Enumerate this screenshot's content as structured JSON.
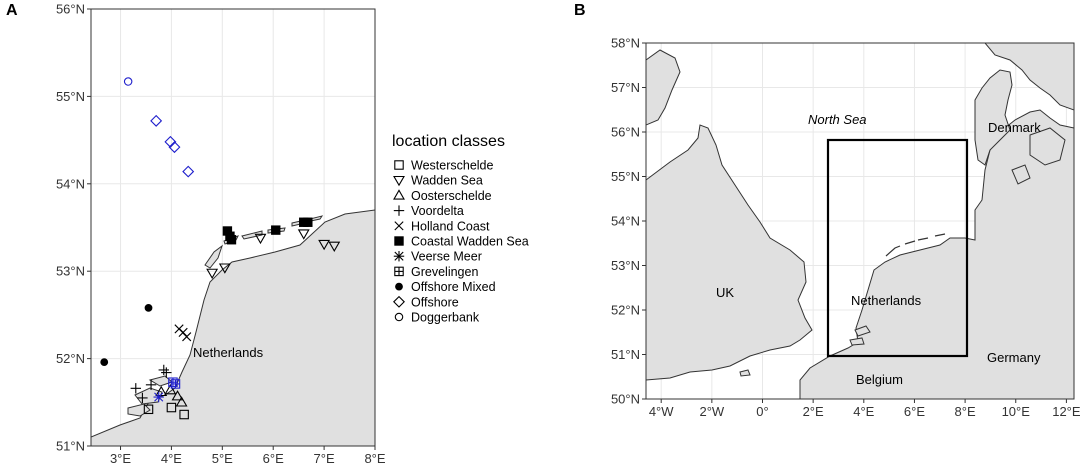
{
  "panel_a": {
    "letter": "A",
    "y_ticks": [
      "51°N",
      "52°N",
      "53°N",
      "54°N",
      "55°N",
      "56°N"
    ],
    "x_ticks": [
      "3°E",
      "4°E",
      "5°E",
      "6°E",
      "7°E",
      "8°E"
    ],
    "country_label": "Netherlands",
    "legend_title": "location classes",
    "legend": [
      {
        "label": "Westerschelde",
        "shape": "open-square"
      },
      {
        "label": "Wadden Sea",
        "shape": "open-triangle-down"
      },
      {
        "label": "Oosterschelde",
        "shape": "open-triangle-up"
      },
      {
        "label": "Voordelta",
        "shape": "plus"
      },
      {
        "label": "Holland Coast",
        "shape": "cross"
      },
      {
        "label": "Coastal Wadden Sea",
        "shape": "filled-square"
      },
      {
        "label": "Veerse Meer",
        "shape": "asterisk"
      },
      {
        "label": "Grevelingen",
        "shape": "square-plus"
      },
      {
        "label": "Offshore Mixed",
        "shape": "filled-circle"
      },
      {
        "label": "Offshore",
        "shape": "open-diamond"
      },
      {
        "label": "Doggerbank",
        "shape": "open-circle"
      }
    ],
    "points": [
      {
        "cls": "Doggerbank",
        "lon": 3.15,
        "lat": 55.17,
        "color": "#1f1fcc"
      },
      {
        "cls": "Offshore",
        "lon": 3.7,
        "lat": 54.72,
        "color": "#1f1fcc"
      },
      {
        "cls": "Offshore",
        "lon": 3.98,
        "lat": 54.48,
        "color": "#1f1fcc"
      },
      {
        "cls": "Offshore",
        "lon": 4.06,
        "lat": 54.42,
        "color": "#1f1fcc"
      },
      {
        "cls": "Offshore",
        "lon": 4.33,
        "lat": 54.14,
        "color": "#1f1fcc"
      },
      {
        "cls": "Offshore Mixed",
        "lon": 3.55,
        "lat": 52.58,
        "color": "#000000"
      },
      {
        "cls": "Offshore Mixed",
        "lon": 2.68,
        "lat": 51.96,
        "color": "#000000"
      },
      {
        "cls": "Coastal Wadden Sea",
        "lon": 5.1,
        "lat": 53.46,
        "color": "#000000"
      },
      {
        "cls": "Coastal Wadden Sea",
        "lon": 5.15,
        "lat": 53.4,
        "color": "#000000"
      },
      {
        "cls": "Coastal Wadden Sea",
        "lon": 5.18,
        "lat": 53.36,
        "color": "#000000"
      },
      {
        "cls": "Coastal Wadden Sea",
        "lon": 6.05,
        "lat": 53.47,
        "color": "#000000"
      },
      {
        "cls": "Coastal Wadden Sea",
        "lon": 6.6,
        "lat": 53.56,
        "color": "#000000"
      },
      {
        "cls": "Coastal Wadden Sea",
        "lon": 6.68,
        "lat": 53.56,
        "color": "#000000"
      },
      {
        "cls": "Wadden Sea",
        "lon": 4.8,
        "lat": 52.98,
        "color": "#000000"
      },
      {
        "cls": "Wadden Sea",
        "lon": 5.05,
        "lat": 53.04,
        "color": "#000000"
      },
      {
        "cls": "Wadden Sea",
        "lon": 5.75,
        "lat": 53.38,
        "color": "#000000"
      },
      {
        "cls": "Wadden Sea",
        "lon": 6.6,
        "lat": 53.43,
        "color": "#000000"
      },
      {
        "cls": "Wadden Sea",
        "lon": 7.0,
        "lat": 53.31,
        "color": "#000000"
      },
      {
        "cls": "Wadden Sea",
        "lon": 7.2,
        "lat": 53.29,
        "color": "#000000"
      },
      {
        "cls": "Holland Coast",
        "lon": 4.15,
        "lat": 52.34,
        "color": "#000000"
      },
      {
        "cls": "Holland Coast",
        "lon": 4.23,
        "lat": 52.3,
        "color": "#000000"
      },
      {
        "cls": "Holland Coast",
        "lon": 4.3,
        "lat": 52.25,
        "color": "#000000"
      },
      {
        "cls": "Voordelta",
        "lon": 3.85,
        "lat": 51.87,
        "color": "#000000"
      },
      {
        "cls": "Voordelta",
        "lon": 3.9,
        "lat": 51.84,
        "color": "#000000"
      },
      {
        "cls": "Voordelta",
        "lon": 3.6,
        "lat": 51.7,
        "color": "#000000"
      },
      {
        "cls": "Voordelta",
        "lon": 3.3,
        "lat": 51.66,
        "color": "#000000"
      },
      {
        "cls": "Voordelta",
        "lon": 3.43,
        "lat": 51.55,
        "color": "#000000"
      },
      {
        "cls": "Oosterschelde",
        "lon": 3.8,
        "lat": 51.62,
        "color": "#000000"
      },
      {
        "cls": "Oosterschelde",
        "lon": 3.98,
        "lat": 51.64,
        "color": "#000000"
      },
      {
        "cls": "Oosterschelde",
        "lon": 4.12,
        "lat": 51.57,
        "color": "#000000"
      },
      {
        "cls": "Oosterschelde",
        "lon": 4.2,
        "lat": 51.5,
        "color": "#000000"
      },
      {
        "cls": "Grevelingen",
        "lon": 4.03,
        "lat": 51.73,
        "color": "#1f1fcc"
      },
      {
        "cls": "Grevelingen",
        "lon": 4.08,
        "lat": 51.71,
        "color": "#1f1fcc"
      },
      {
        "cls": "Veerse Meer",
        "lon": 3.75,
        "lat": 51.56,
        "color": "#1f1fcc"
      },
      {
        "cls": "Westerschelde",
        "lon": 3.55,
        "lat": 51.42,
        "color": "#000000"
      },
      {
        "cls": "Westerschelde",
        "lon": 4.0,
        "lat": 51.44,
        "color": "#000000"
      },
      {
        "cls": "Westerschelde",
        "lon": 4.25,
        "lat": 51.36,
        "color": "#000000"
      }
    ]
  },
  "panel_b": {
    "letter": "B",
    "y_ticks": [
      "50°N",
      "51°N",
      "52°N",
      "53°N",
      "54°N",
      "55°N",
      "56°N",
      "57°N",
      "58°N"
    ],
    "x_ticks": [
      "4°W",
      "2°W",
      "0°",
      "2°E",
      "4°E",
      "6°E",
      "8°E",
      "10°E",
      "12°E"
    ],
    "labels": {
      "sea": "North Sea",
      "uk": "UK",
      "netherlands": "Netherlands",
      "denmark": "Denmark",
      "germany": "Germany",
      "belgium": "Belgium"
    }
  },
  "colors": {
    "land": "#e0e0e0",
    "grid": "#e8e8e8",
    "coast": "#333333",
    "blue_marker": "#1f1fcc"
  }
}
